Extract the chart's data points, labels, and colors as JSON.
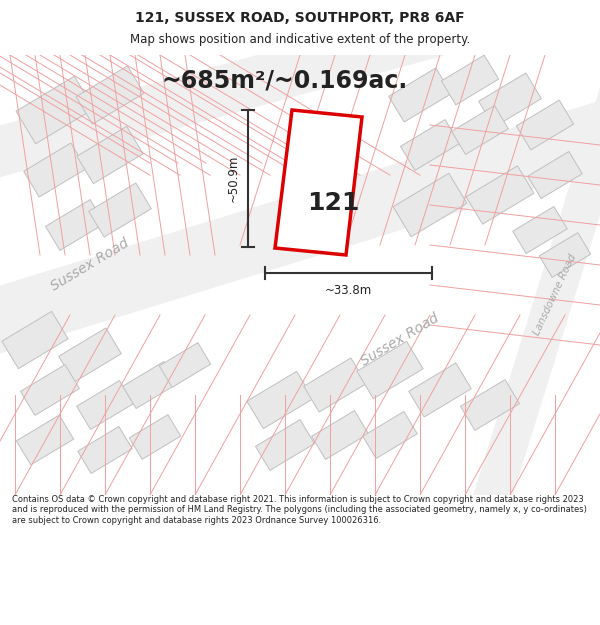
{
  "title": "121, SUSSEX ROAD, SOUTHPORT, PR8 6AF",
  "subtitle": "Map shows position and indicative extent of the property.",
  "area_text": "~685m²/~0.169ac.",
  "property_number": "121",
  "dim_width": "~33.8m",
  "dim_height": "~50.9m",
  "footer_text": "Contains OS data © Crown copyright and database right 2021. This information is subject to Crown copyright and database rights 2023 and is reproduced with the permission of HM Land Registry. The polygons (including the associated geometry, namely x, y co-ordinates) are subject to Crown copyright and database rights 2023 Ordnance Survey 100026316.",
  "bg_color": "#ffffff",
  "map_bg": "#f7f7f7",
  "pink": "#f0a0a0",
  "building_fill": "#e8e8e8",
  "building_edge": "#c0c0c0",
  "road_fill": "#ececec",
  "property_fill": "#ffffff",
  "property_edge": "#dd0000",
  "dim_color": "#333333",
  "text_color": "#222222",
  "road_text_color": "#aaaaaa",
  "title_fontsize": 10,
  "subtitle_fontsize": 8.5,
  "area_fontsize": 17,
  "prop_num_fontsize": 18,
  "dim_fontsize": 8.5,
  "road_fontsize": 10,
  "footer_fontsize": 6.0
}
